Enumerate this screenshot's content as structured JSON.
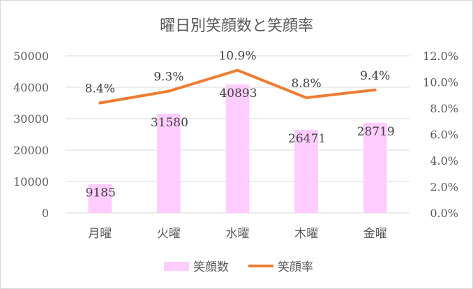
{
  "chart_data": {
    "type": "bar",
    "title": "曜日別笑顔数と笑顔率",
    "categories": [
      "月曜",
      "火曜",
      "水曜",
      "木曜",
      "金曜"
    ],
    "series": [
      {
        "name": "笑顔数",
        "type": "bar",
        "axis": "left",
        "values": [
          9185,
          31580,
          40893,
          26471,
          28719
        ],
        "labels": [
          "9185",
          "31580",
          "40893",
          "26471",
          "28719"
        ],
        "color": "#FFCCFF"
      },
      {
        "name": "笑顔率",
        "type": "line",
        "axis": "right",
        "values": [
          8.4,
          9.3,
          10.9,
          8.8,
          9.4
        ],
        "labels": [
          "8.4%",
          "9.3%",
          "10.9%",
          "8.8%",
          "9.4%"
        ],
        "color": "#ED7D31"
      }
    ],
    "y_left": {
      "range": [
        0,
        50000
      ],
      "ticks": [
        "0",
        "10000",
        "20000",
        "30000",
        "40000",
        "50000"
      ]
    },
    "y_right": {
      "range": [
        0,
        12
      ],
      "unit": "%",
      "ticks": [
        "0.0%",
        "2.0%",
        "4.0%",
        "6.0%",
        "8.0%",
        "10.0%",
        "12.0%"
      ]
    },
    "grid": true,
    "gridline_color": "#d9d9d9",
    "legend": "bottom"
  }
}
